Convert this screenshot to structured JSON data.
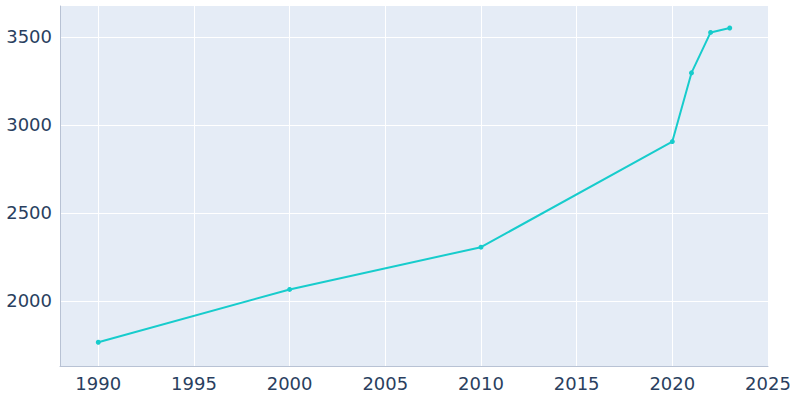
{
  "chart_data": {
    "type": "line",
    "x": [
      1990,
      2000,
      2010,
      2020,
      2021,
      2022,
      2023
    ],
    "values": [
      1765,
      2065,
      2305,
      2905,
      3295,
      3525,
      3550
    ],
    "color": "#17cccc",
    "marker": "circle",
    "xlim": [
      1988,
      2025
    ],
    "xticks": [
      1990,
      1995,
      2000,
      2005,
      2010,
      2015,
      2020,
      2025
    ],
    "ylim": [
      1630,
      3675
    ],
    "yticks": [
      2000,
      2500,
      3000,
      3500
    ],
    "grid": true
  }
}
